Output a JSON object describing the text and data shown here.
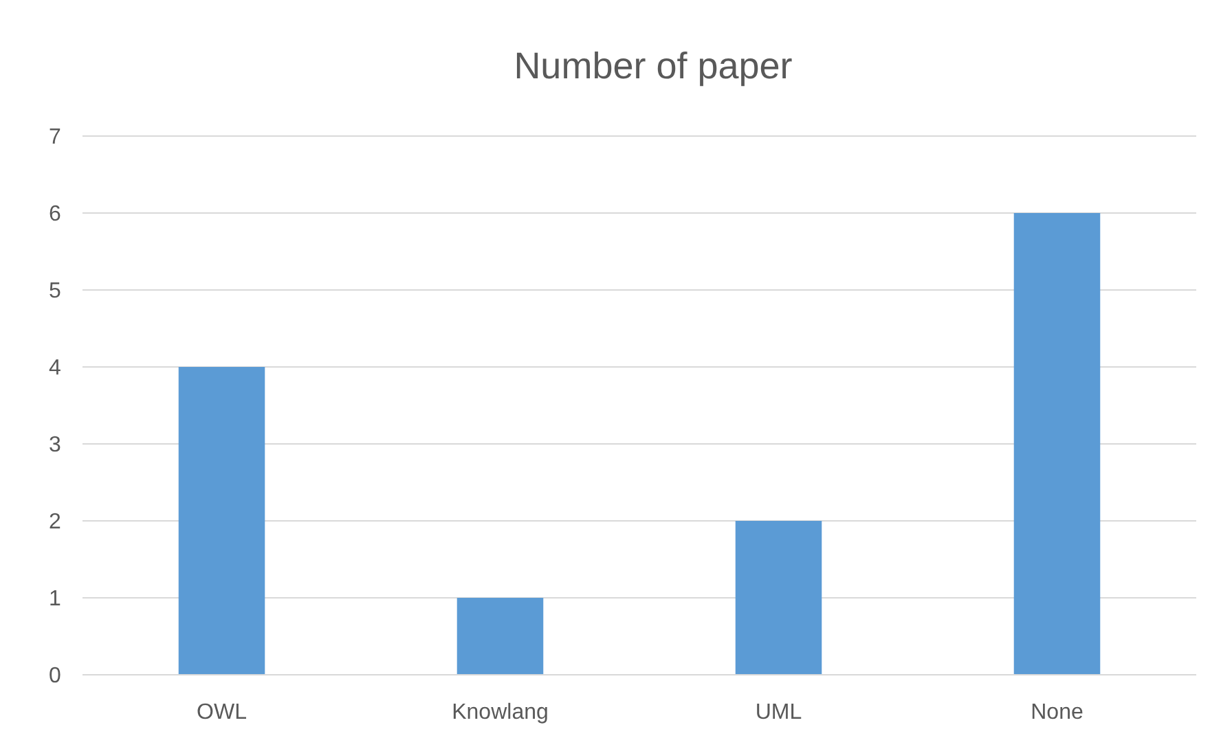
{
  "chart_data": {
    "type": "bar",
    "title": "Number of paper",
    "categories": [
      "OWL",
      "Knowlang",
      "UML",
      "None"
    ],
    "values": [
      4,
      1,
      2,
      6
    ],
    "color": "#5b9bd5",
    "ylim": [
      0,
      7
    ],
    "yticks": [
      0,
      1,
      2,
      3,
      4,
      5,
      6,
      7
    ],
    "grid": "y"
  }
}
